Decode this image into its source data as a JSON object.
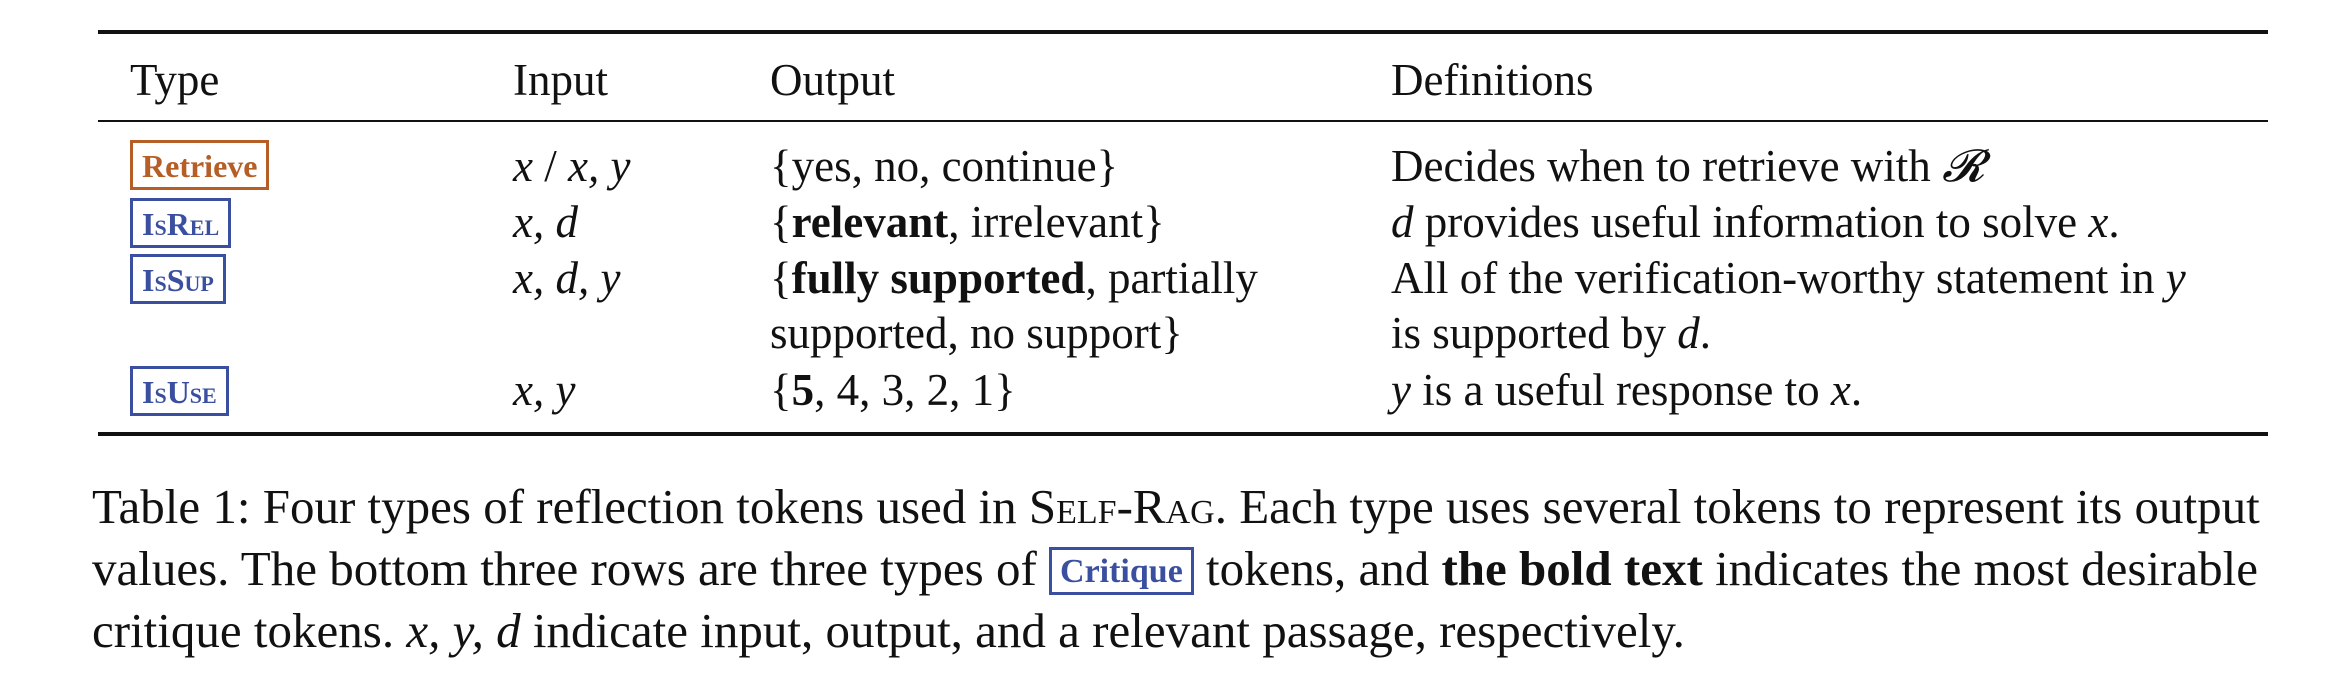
{
  "table": {
    "headers": {
      "type": "Type",
      "input": "Input",
      "output": "Output",
      "definitions": "Definitions"
    },
    "rows": [
      {
        "token": "Retrieve",
        "token_color": "#b55e25",
        "input_a": "x",
        "input_sep": " / ",
        "input_b": "x, y",
        "output": "{yes, no, continue}",
        "definition_text": "Decides when to retrieve with ",
        "definition_symbol": "𝓡"
      },
      {
        "token": "IsRel",
        "token_color": "#3a4fa0",
        "input": "x, d",
        "output_open": "{",
        "output_bold": "relevant",
        "output_rest": ", irrelevant}",
        "definition_var1": "d",
        "definition_text": " provides useful information to solve ",
        "definition_var2": "x",
        "definition_end": "."
      },
      {
        "token": "IsSup",
        "token_color": "#3a4fa0",
        "input": "x, d, y",
        "output_open": "{",
        "output_bold": "fully supported",
        "output_line1_rest": ", partially",
        "output_line2": "supported, no support}",
        "definition_line1_text": "All of the verification-worthy statement in ",
        "definition_line1_var": "y",
        "definition_line2_text": "is supported by ",
        "definition_line2_var": "d",
        "definition_line2_end": "."
      },
      {
        "token": "IsUse",
        "token_color": "#3a4fa0",
        "input": "x, y",
        "output_open": "{",
        "output_bold": "5",
        "output_rest": ", 4, 3, 2, 1}",
        "definition_var1": "y",
        "definition_text": " is a useful response to ",
        "definition_var2": "x",
        "definition_end": "."
      }
    ]
  },
  "caption": {
    "part1": "Table 1: Four types of reflection tokens used in ",
    "system_name": "Self-Rag",
    "part2": ". Each type uses several tokens to represent its output values. The bottom three rows are three types of ",
    "critique_token": "Critique",
    "part3": " tokens, and ",
    "bold_text": "the bold text",
    "part4": " indicates the most desirable critique tokens. ",
    "math_vars": "x, y, d",
    "part5": " indicate input, output, and a relevant passage, respectively."
  }
}
